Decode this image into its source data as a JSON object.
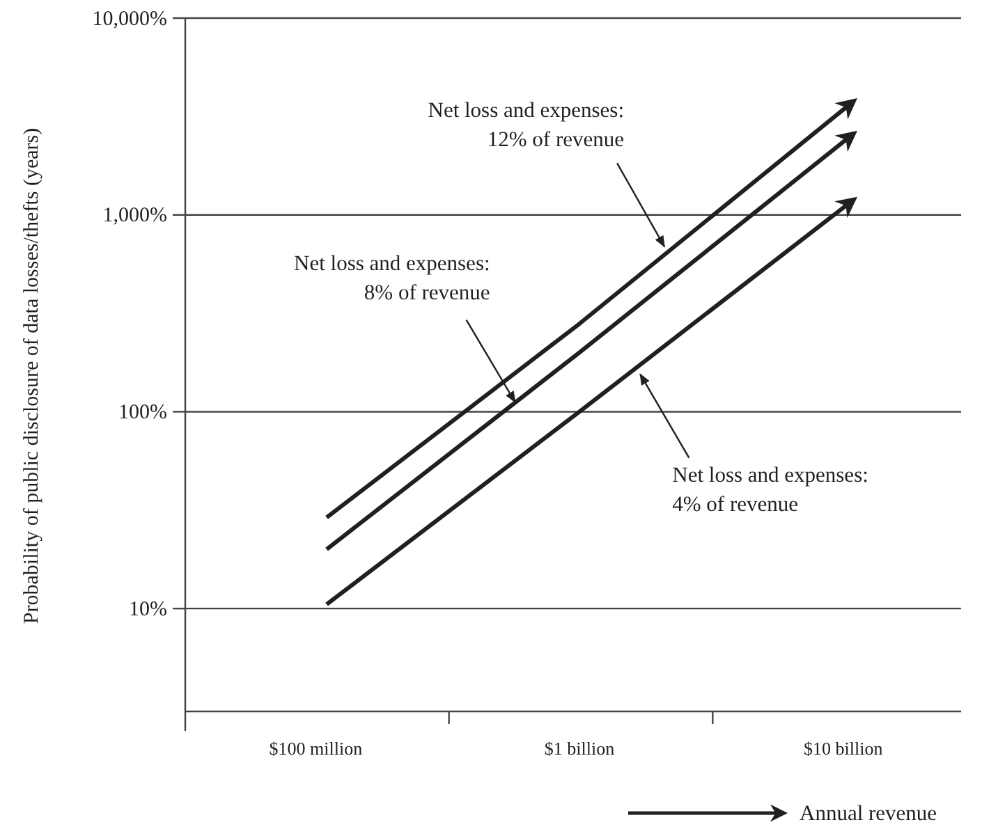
{
  "chart_data": {
    "type": "line",
    "xlabel": "Annual revenue",
    "ylabel": "Probability of public disclosure of data losses/thefts (years)",
    "log": "xy",
    "grid": "y",
    "line_style": "solid",
    "xlim": [
      32000000,
      28000000000
    ],
    "xticks": [
      {
        "value": 100000000,
        "label": "$100 million"
      },
      {
        "value": 320000000,
        "label": null
      },
      {
        "value": 1000000000,
        "label": "$1 billion"
      },
      {
        "value": 3200000000,
        "label": null
      },
      {
        "value": 10000000000,
        "label": "$10 billion"
      }
    ],
    "ylim": [
      3,
      10000
    ],
    "yticks": [
      {
        "value": 10,
        "label": "10%"
      },
      {
        "value": 100,
        "label": "100%"
      },
      {
        "value": 1000,
        "label": "1,000%"
      },
      {
        "value": 10000,
        "label": "10,000%"
      }
    ],
    "x": [
      110000000,
      1000000000,
      11000000000
    ],
    "series": [
      {
        "color": "#231f20",
        "values": [
          29,
          280,
          3800
        ]
      },
      {
        "color": "#231f20",
        "values": [
          20,
          200,
          2600
        ]
      },
      {
        "color": "#231f20",
        "values": [
          10.5,
          100,
          1200
        ]
      }
    ],
    "annotations": [
      {
        "text": "Net loss and expenses:\n12% of revenue",
        "x": 2100000000,
        "y": 690
      },
      {
        "text": "Net loss and expenses:\n8% of revenue",
        "x": 570000000,
        "y": 112
      },
      {
        "text": "Net loss and expenses:\n4% of revenue",
        "x": 1700000000,
        "y": 155
      }
    ]
  }
}
